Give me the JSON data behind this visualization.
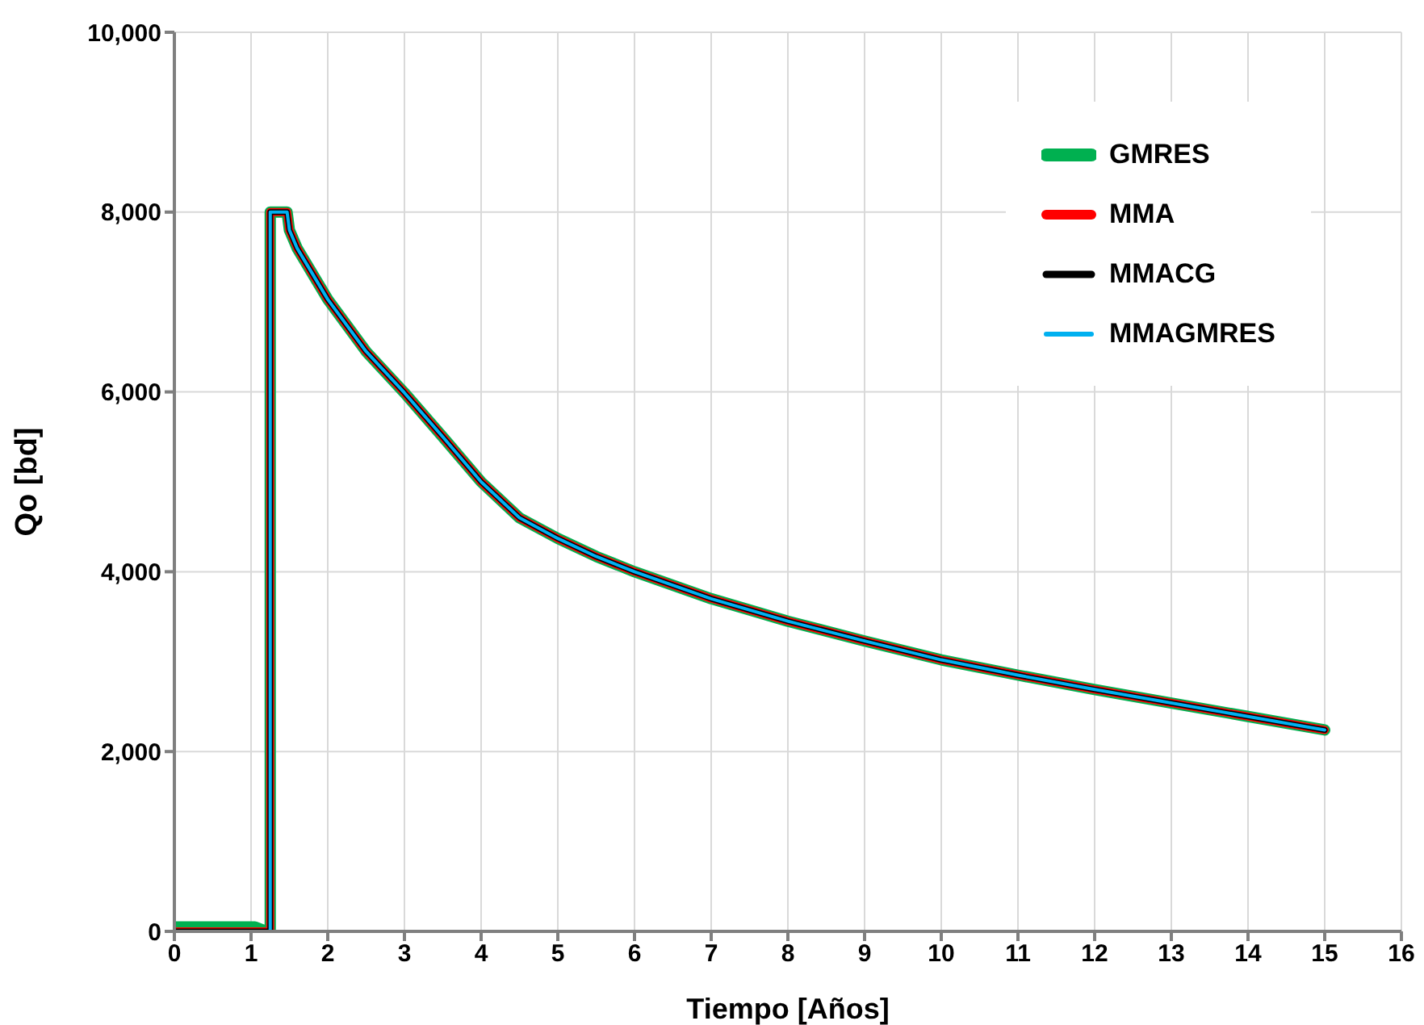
{
  "chart_data": {
    "type": "line",
    "xlabel": "Tiempo [Años]",
    "ylabel": "Qo [bd]",
    "x": [
      0,
      1.05,
      1.2,
      1.25,
      1.25,
      1.47,
      1.5,
      1.6,
      2,
      2.5,
      3,
      3.5,
      4,
      4.5,
      5,
      5.5,
      6,
      7,
      8,
      9,
      10,
      11,
      12,
      13,
      14,
      15
    ],
    "series": [
      {
        "name": "GMRES",
        "color": "#00b050",
        "values": [
          50,
          50,
          0,
          0,
          8000,
          8000,
          7800,
          7600,
          7030,
          6450,
          5990,
          5500,
          5000,
          4600,
          4370,
          4170,
          4000,
          3700,
          3450,
          3230,
          3020,
          2850,
          2690,
          2540,
          2390,
          2240
        ]
      },
      {
        "name": "MMA",
        "color": "#ff0000",
        "values": [
          0,
          0,
          0,
          0,
          8000,
          8000,
          7800,
          7600,
          7030,
          6450,
          5990,
          5500,
          5000,
          4600,
          4370,
          4170,
          4000,
          3700,
          3450,
          3230,
          3020,
          2850,
          2690,
          2540,
          2390,
          2240
        ]
      },
      {
        "name": "MMACG",
        "color": "#000000",
        "values": [
          0,
          0,
          0,
          0,
          8000,
          8000,
          7800,
          7600,
          7030,
          6450,
          5990,
          5500,
          5000,
          4600,
          4370,
          4170,
          4000,
          3700,
          3450,
          3230,
          3020,
          2850,
          2690,
          2540,
          2390,
          2240
        ]
      },
      {
        "name": "MMAGMRES",
        "color": "#00b0f0",
        "values": [
          0,
          0,
          0,
          0,
          8000,
          8000,
          7800,
          7600,
          7030,
          6450,
          5990,
          5500,
          5000,
          4600,
          4370,
          4170,
          4000,
          3700,
          3450,
          3230,
          3020,
          2850,
          2690,
          2540,
          2390,
          2240
        ]
      }
    ],
    "xlim": [
      0,
      16
    ],
    "xticks": [
      0,
      1,
      2,
      3,
      4,
      5,
      6,
      7,
      8,
      9,
      10,
      11,
      12,
      13,
      14,
      15,
      16
    ],
    "ylim": [
      0,
      10000
    ],
    "yticks": [
      {
        "value": 0,
        "label": "0"
      },
      {
        "value": 2000,
        "label": "2,000"
      },
      {
        "value": 4000,
        "label": "4,000"
      },
      {
        "value": 6000,
        "label": "6,000"
      },
      {
        "value": 8000,
        "label": "8,000"
      },
      {
        "value": 10000,
        "label": "10,000"
      }
    ],
    "grid": true,
    "legend": "top right",
    "marker": "none",
    "line_style": "solid"
  }
}
